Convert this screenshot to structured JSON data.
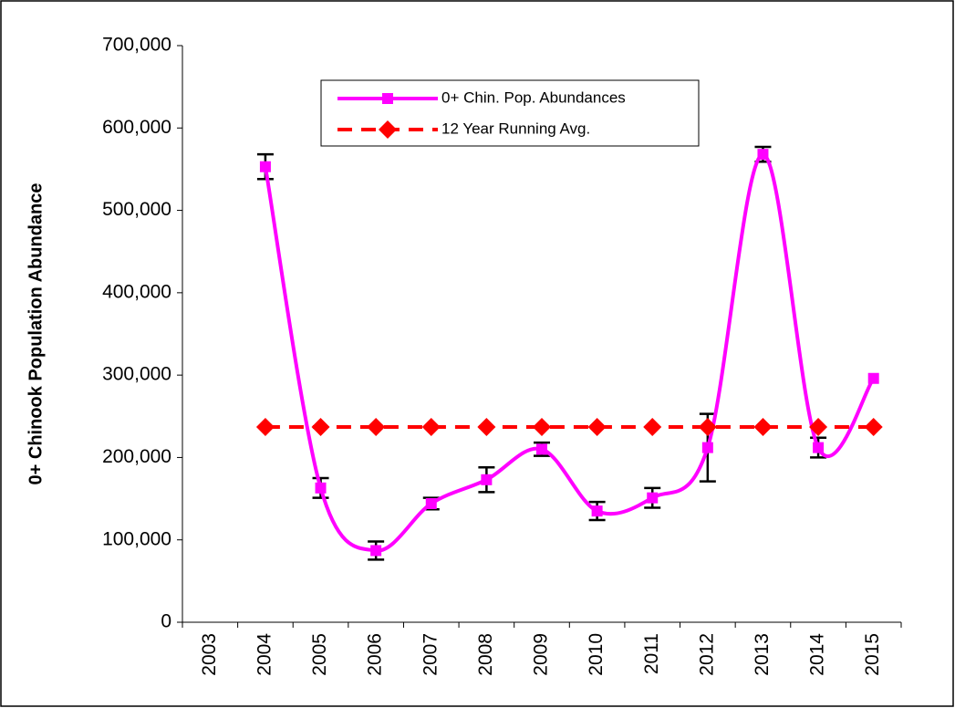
{
  "chart_data": {
    "type": "line",
    "y_label": "0+ Chinook Population Abundance",
    "categories": [
      "2003",
      "2004",
      "2005",
      "2006",
      "2007",
      "2008",
      "2009",
      "2010",
      "2011",
      "2012",
      "2013",
      "2014",
      "2015"
    ],
    "series": [
      {
        "name": "0+ Chin. Pop. Abundances",
        "color": "#ff00ff",
        "marker": "square",
        "style": "smooth",
        "values": [
          null,
          553000,
          163000,
          87000,
          144000,
          173000,
          210000,
          135000,
          151000,
          212000,
          568000,
          212000,
          296000
        ],
        "errors": [
          null,
          15000,
          12000,
          11000,
          7000,
          15000,
          8000,
          11000,
          12000,
          41000,
          9000,
          12000,
          null
        ]
      },
      {
        "name": "12 Year Running Avg.",
        "color": "#ff0000",
        "marker": "diamond",
        "style": "dashed",
        "values": [
          null,
          237000,
          237000,
          237000,
          237000,
          237000,
          237000,
          237000,
          237000,
          237000,
          237000,
          237000,
          237000
        ]
      }
    ],
    "ylim": [
      0,
      700000
    ],
    "yticks": [
      0,
      {
        "value": 100000,
        "label": "100,000"
      },
      {
        "value": 200000,
        "label": "200,000"
      },
      {
        "value": 300000,
        "label": "300,000"
      },
      {
        "value": 400000,
        "label": "400,000"
      },
      {
        "value": 500000,
        "label": "500,000"
      },
      {
        "value": 600000,
        "label": "600,000"
      },
      {
        "value": 700000,
        "label": "700,000"
      }
    ],
    "grid": false
  }
}
